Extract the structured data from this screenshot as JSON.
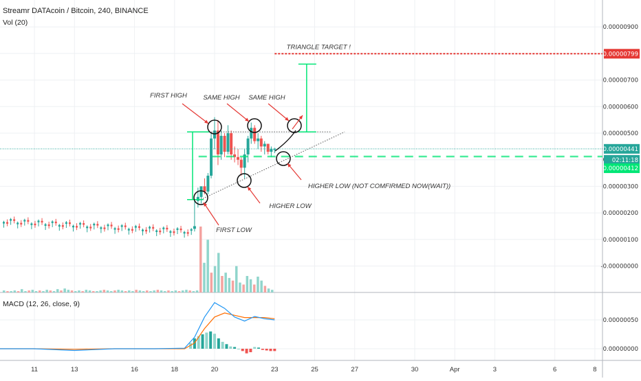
{
  "header": {
    "title": "Streamr DATAcoin / Bitcoin, 240, BINANCE",
    "volume_legend": "Vol (20)"
  },
  "macd": {
    "legend": "MACD (12, 26, close, 9)"
  },
  "colors": {
    "up": "#26a69a",
    "up_volume": "#90d5cc",
    "down": "#ef5350",
    "down_volume": "#f4a3a0",
    "macd_line": "#2196f3",
    "signal_line": "#ff6d00",
    "target": "#e53935",
    "green": "#00e676",
    "current_price": "#26a69a"
  },
  "price_labels": {
    "target": "0.00000799",
    "current": "0.00000441",
    "countdown": "02:11:18",
    "level": "0.00000412"
  },
  "annotations": {
    "triangle_target": "TRIANGLE TARGET !",
    "first_high": "FIRST HIGH",
    "same_high_1": "SAME HIGH",
    "same_high_2": "SAME HIGH",
    "first_low": "FIRST LOW",
    "higher_low": "HIGHER LOW",
    "higher_low_nc": "HIGHER LOW (NOT COMFIRMED NOW(WAIT))"
  },
  "chart_data": [
    {
      "type": "candlestick",
      "title": "Streamr DATAcoin / Bitcoin, 240, BINANCE",
      "y_ticks": [
        "0.00000900",
        "0.00000800",
        "0.00000700",
        "0.00000600",
        "0.00000500",
        "0.00000400",
        "0.00000300",
        "0.00000200",
        "0.00000100",
        "-0.00000000"
      ],
      "y_tick_values": [
        900,
        800,
        700,
        600,
        500,
        400,
        300,
        200,
        100,
        0
      ],
      "value_unit": "1e-8 BTC",
      "ylim": [
        -100,
        1000
      ],
      "x_ticks": [
        {
          "label": "11",
          "day": 11
        },
        {
          "label": "13",
          "day": 13
        },
        {
          "label": "16",
          "day": 16
        },
        {
          "label": "18",
          "day": 18
        },
        {
          "label": "20",
          "day": 20
        },
        {
          "label": "23",
          "day": 23
        },
        {
          "label": "25",
          "day": 25
        },
        {
          "label": "27",
          "day": 27
        },
        {
          "label": "30",
          "day": 30
        },
        {
          "label": "Apr",
          "day": 32
        },
        {
          "label": "3",
          "day": 34
        },
        {
          "label": "6",
          "day": 37
        },
        {
          "label": "8",
          "day": 39
        }
      ],
      "grid": true,
      "candle_days": [
        19.0,
        19.17,
        19.33,
        19.5,
        19.67,
        19.83,
        20.0,
        20.17,
        20.33,
        20.5,
        20.67,
        20.83,
        21.0,
        21.17,
        21.33,
        21.5,
        21.67,
        21.83,
        22.0,
        22.17,
        22.33,
        22.5,
        22.67,
        22.83,
        23.0
      ],
      "candles": [
        [
          140,
          245,
          130,
          150
        ],
        [
          245,
          295,
          220,
          260
        ],
        [
          260,
          300,
          235,
          300
        ],
        [
          300,
          330,
          270,
          280
        ],
        [
          280,
          350,
          270,
          340
        ],
        [
          340,
          500,
          330,
          480
        ],
        [
          480,
          560,
          440,
          510
        ],
        [
          510,
          550,
          380,
          420
        ],
        [
          420,
          510,
          400,
          490
        ],
        [
          490,
          500,
          410,
          430
        ],
        [
          430,
          530,
          420,
          500
        ],
        [
          500,
          510,
          400,
          420
        ],
        [
          420,
          450,
          390,
          410
        ],
        [
          410,
          440,
          380,
          400
        ],
        [
          400,
          410,
          340,
          370
        ],
        [
          370,
          440,
          330,
          420
        ],
        [
          420,
          490,
          390,
          480
        ],
        [
          480,
          540,
          460,
          520
        ],
        [
          520,
          530,
          460,
          470
        ],
        [
          470,
          500,
          440,
          480
        ],
        [
          480,
          490,
          430,
          450
        ],
        [
          450,
          470,
          420,
          460
        ],
        [
          460,
          460,
          420,
          430
        ],
        [
          430,
          450,
          410,
          440
        ],
        [
          440,
          445,
          425,
          441
        ]
      ],
      "pre_breakout_level": 160,
      "volumes": [
        3,
        2,
        2,
        3,
        2,
        5,
        2,
        3,
        4,
        2,
        3,
        2,
        4,
        3,
        2,
        5,
        3,
        6,
        4,
        3,
        2,
        3,
        2,
        4,
        3,
        2,
        2,
        3,
        4,
        3,
        2,
        3,
        4,
        3,
        2,
        3,
        2,
        4,
        3,
        2,
        3,
        2,
        3,
        4,
        3,
        2,
        3,
        2,
        3,
        2,
        3,
        4,
        3,
        2,
        3,
        100,
        45,
        80,
        30,
        40,
        60,
        25,
        30,
        22,
        18,
        40,
        15,
        12,
        25,
        20,
        12,
        24,
        18,
        10,
        6,
        4
      ],
      "target_level": 799,
      "current_level": 441,
      "support_level": 412,
      "triangle_top": 505
    },
    {
      "type": "macd",
      "title": "MACD (12, 26, close, 9)",
      "y_ticks": [
        "0.00000050",
        "0.00000000"
      ],
      "y_tick_values": [
        50,
        0
      ],
      "value_unit": "1e-8 BTC",
      "ylim": [
        -20,
        90
      ],
      "macd_x": [
        9,
        11,
        13,
        15,
        17,
        18.5,
        19,
        19.5,
        20,
        20.5,
        21,
        21.5,
        22,
        22.5,
        23
      ],
      "macd": [
        0,
        0,
        -3,
        0,
        0,
        1,
        20,
        55,
        80,
        70,
        55,
        48,
        56,
        52,
        50
      ],
      "signal": [
        0,
        0,
        -1,
        0,
        0,
        0,
        10,
        35,
        55,
        62,
        58,
        54,
        54,
        54,
        52
      ],
      "histogram_x": [
        18.8,
        19.0,
        19.2,
        19.4,
        19.6,
        19.8,
        20.0,
        20.2,
        20.4,
        20.6,
        20.8,
        21.0,
        21.2,
        21.4,
        21.6,
        21.8,
        22.0,
        22.2,
        22.4,
        22.6,
        22.8,
        23.0
      ],
      "histogram": [
        10,
        18,
        22,
        25,
        28,
        30,
        26,
        18,
        12,
        8,
        4,
        3,
        0,
        -4,
        -8,
        -6,
        3,
        2,
        -2,
        -3,
        -4,
        -4
      ]
    }
  ]
}
